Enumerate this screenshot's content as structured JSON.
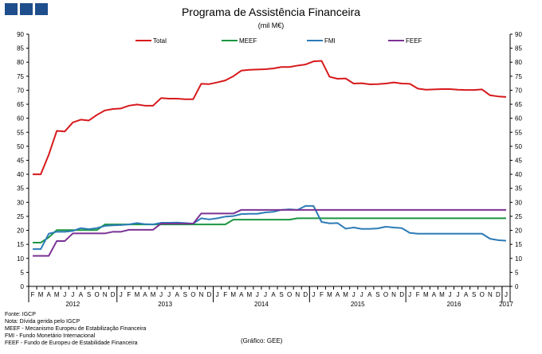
{
  "header": {
    "title": "Programa de Assistência Financeira",
    "subtitle": "(mil M€)"
  },
  "notes": [
    "Fonte: IGCP",
    "Nota: Dívida gerida pelo IGCP",
    "MEEF - Mecanismo Europeu de Estabilização Financeira",
    "FMI - Fundo Monetário Internacional",
    "FEEF - Fundo de Europeu de Estabilidade Financeira"
  ],
  "credit": "(Gráfico: GEE)",
  "colors": {
    "logo": "#1f4e8c",
    "total": "#d7191c",
    "meef": "#1a9641",
    "fmi": "#2c7bb6",
    "feef": "#7b3294",
    "axis": "#000000"
  },
  "chart_data": {
    "type": "line",
    "title": "Programa de Assistência Financeira",
    "subtitle": "(mil M€)",
    "ylim": [
      0,
      90
    ],
    "yticks": [
      0,
      5,
      10,
      15,
      20,
      25,
      30,
      35,
      40,
      45,
      50,
      55,
      60,
      65,
      70,
      75,
      80,
      85,
      90
    ],
    "y2ticks": [
      0,
      5,
      10,
      15,
      20,
      25,
      30,
      35,
      40,
      45,
      50,
      55,
      60,
      65,
      70,
      75,
      80,
      85,
      90
    ],
    "grid": false,
    "legend": "top",
    "month_labels": [
      "F",
      "M",
      "A",
      "M",
      "J",
      "J",
      "A",
      "S",
      "O",
      "N",
      "D",
      "J",
      "F",
      "M",
      "A",
      "M",
      "J",
      "J",
      "A",
      "S",
      "O",
      "N",
      "D",
      "J",
      "F",
      "M",
      "A",
      "M",
      "J",
      "J",
      "A",
      "S",
      "O",
      "N",
      "D",
      "J",
      "F",
      "M",
      "A",
      "M",
      "J",
      "J",
      "A",
      "S",
      "O",
      "N",
      "D",
      "J",
      "F",
      "M",
      "A",
      "M",
      "J",
      "J",
      "A",
      "S",
      "O",
      "N",
      "D",
      "J"
    ],
    "years": [
      {
        "label": "2012",
        "start": 0,
        "end": 11
      },
      {
        "label": "2013",
        "start": 11,
        "end": 23
      },
      {
        "label": "2014",
        "start": 23,
        "end": 35
      },
      {
        "label": "2015",
        "start": 35,
        "end": 47
      },
      {
        "label": "2016",
        "start": 47,
        "end": 59
      },
      {
        "label": "2017",
        "start": 59,
        "end": 60
      }
    ],
    "series": [
      {
        "name": "Total",
        "color": "#d7191c",
        "values": [
          40,
          40,
          47,
          55.5,
          55.3,
          58.5,
          59.5,
          59.2,
          61.2,
          62.8,
          63.3,
          63.5,
          64.5,
          64.9,
          64.5,
          64.5,
          67.2,
          67,
          67,
          66.8,
          66.8,
          72.3,
          72.2,
          72.8,
          73.5,
          75,
          77,
          77.3,
          77.4,
          77.5,
          77.8,
          78.3,
          78.3,
          78.8,
          79.2,
          80.3,
          80.5,
          74.8,
          74.1,
          74.2,
          72.4,
          72.5,
          72.1,
          72.2,
          72.4,
          72.8,
          72.4,
          72.3,
          70.6,
          70.2,
          70.3,
          70.4,
          70.4,
          70.2,
          70.1,
          70.1,
          70.3,
          68.2,
          67.8,
          67.6
        ]
      },
      {
        "name": "MEEF",
        "color": "#1a9641",
        "values": [
          15.6,
          15.6,
          17.5,
          20.1,
          20.1,
          20.1,
          20.1,
          20.1,
          20.1,
          22.1,
          22.1,
          22.1,
          22.1,
          22.1,
          22.1,
          22.1,
          22.1,
          22.1,
          22.1,
          22.1,
          22.1,
          22.1,
          22.1,
          22.1,
          22.1,
          23.8,
          23.8,
          23.8,
          23.8,
          23.8,
          23.8,
          23.8,
          23.8,
          24.3,
          24.3,
          24.3,
          24.3,
          24.3,
          24.3,
          24.3,
          24.3,
          24.3,
          24.3,
          24.3,
          24.3,
          24.3,
          24.3,
          24.3,
          24.3,
          24.3,
          24.3,
          24.3,
          24.3,
          24.3,
          24.3,
          24.3,
          24.3,
          24.3,
          24.3,
          24.3
        ]
      },
      {
        "name": "FMI",
        "color": "#2c7bb6",
        "values": [
          13.3,
          13.3,
          18.8,
          19.5,
          19.5,
          19.8,
          20.8,
          20.4,
          20.8,
          21.6,
          21.8,
          21.9,
          22.1,
          22.6,
          22.2,
          22.1,
          22.7,
          22.7,
          22.8,
          22.6,
          22.4,
          24.3,
          23.9,
          24.3,
          24.9,
          25.1,
          25.8,
          25.9,
          25.9,
          26.4,
          26.6,
          27.3,
          27.5,
          27.3,
          28.7,
          28.7,
          23,
          22.5,
          22.6,
          20.6,
          21,
          20.5,
          20.5,
          20.7,
          21.3,
          21,
          20.8,
          19.1,
          18.8,
          18.8,
          18.8,
          18.8,
          18.8,
          18.8,
          18.8,
          18.8,
          18.8,
          17,
          16.5,
          16.3
        ]
      },
      {
        "name": "FEEF",
        "color": "#7b3294",
        "values": [
          10.9,
          10.9,
          10.9,
          16.2,
          16.2,
          18.9,
          18.9,
          18.9,
          18.9,
          18.9,
          19.5,
          19.5,
          20.2,
          20.2,
          20.2,
          20.2,
          22.4,
          22.4,
          22.4,
          22.4,
          22.4,
          26,
          26,
          26,
          26,
          26,
          27.3,
          27.3,
          27.3,
          27.3,
          27.3,
          27.3,
          27.3,
          27.3,
          27.3,
          27.3,
          27.3,
          27.3,
          27.3,
          27.3,
          27.3,
          27.3,
          27.3,
          27.3,
          27.3,
          27.3,
          27.3,
          27.3,
          27.3,
          27.3,
          27.3,
          27.3,
          27.3,
          27.3,
          27.3,
          27.3,
          27.3,
          27.3,
          27.3,
          27.3
        ]
      }
    ]
  }
}
